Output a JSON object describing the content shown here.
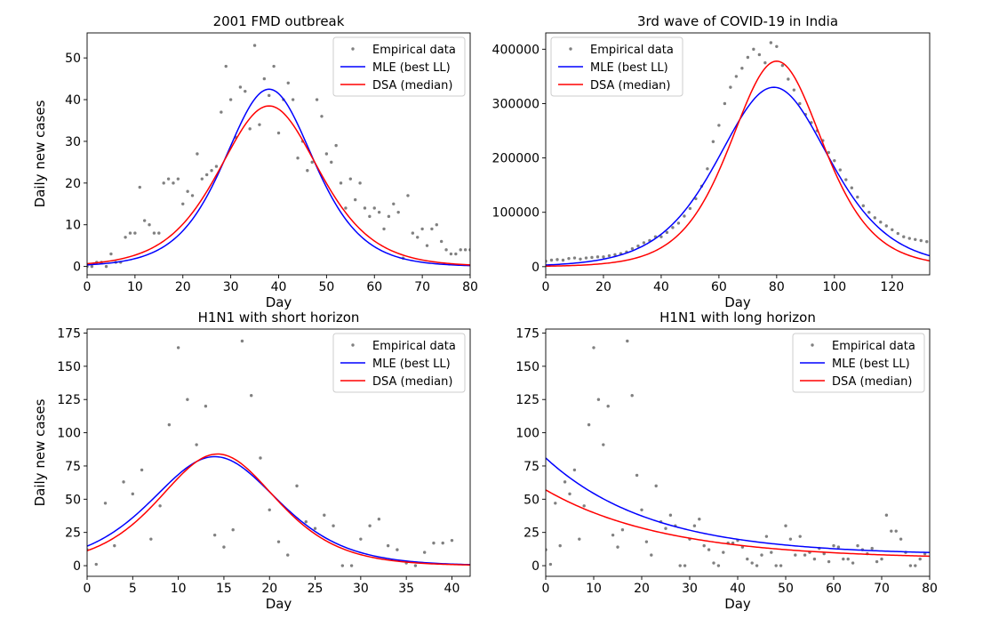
{
  "colors": {
    "empirical": "#808080",
    "mle": "#0000ff",
    "dsa": "#ff0000"
  },
  "chart_data": [
    {
      "type": "line",
      "title": "2001 FMD outbreak",
      "xlabel": "Day",
      "ylabel": "Daily new cases",
      "xlim": [
        0,
        80
      ],
      "ylim": [
        -2,
        56
      ],
      "xticks": [
        0,
        10,
        20,
        30,
        40,
        50,
        60,
        70,
        80
      ],
      "xtick_labels": [
        "0",
        "10",
        "20",
        "30",
        "40",
        "50",
        "60",
        "70",
        "80"
      ],
      "yticks": [
        0,
        10,
        20,
        30,
        40,
        50
      ],
      "ytick_labels": [
        "0",
        "10",
        "20",
        "30",
        "40",
        "50"
      ],
      "legend": {
        "position": "top-right",
        "entries": [
          "Empirical data",
          "MLE (best LL)",
          "DSA (median)"
        ]
      },
      "series": [
        {
          "name": "Empirical data",
          "kind": "scatter",
          "x": [
            0,
            1,
            2,
            3,
            4,
            5,
            6,
            7,
            8,
            9,
            10,
            11,
            12,
            13,
            14,
            15,
            16,
            17,
            18,
            19,
            20,
            21,
            22,
            23,
            24,
            25,
            26,
            27,
            28,
            29,
            30,
            31,
            32,
            33,
            34,
            35,
            36,
            37,
            38,
            39,
            40,
            41,
            42,
            43,
            44,
            45,
            46,
            47,
            48,
            49,
            50,
            51,
            52,
            53,
            54,
            55,
            56,
            57,
            58,
            59,
            60,
            61,
            62,
            63,
            64,
            65,
            66,
            67,
            68,
            69,
            70,
            71,
            72,
            73,
            74,
            75,
            76,
            77,
            78,
            79,
            80
          ],
          "y": [
            0,
            0,
            1,
            1,
            0,
            3,
            1,
            1,
            7,
            8,
            8,
            19,
            11,
            10,
            8,
            8,
            20,
            21,
            20,
            21,
            15,
            18,
            17,
            27,
            21,
            22,
            23,
            24,
            37,
            48,
            40,
            31,
            43,
            42,
            33,
            53,
            34,
            45,
            41,
            48,
            32,
            40,
            44,
            40,
            26,
            30,
            23,
            25,
            40,
            36,
            27,
            25,
            29,
            20,
            14,
            21,
            16,
            20,
            14,
            12,
            14,
            13,
            9,
            12,
            15,
            13,
            2,
            17,
            8,
            7,
            9,
            5,
            9,
            10,
            6,
            4,
            3,
            3,
            4,
            4,
            4
          ]
        },
        {
          "name": "MLE (best LL)",
          "kind": "line",
          "peak": 42.5,
          "center": 38,
          "width": 12.5,
          "base": 0
        },
        {
          "name": "DSA (median)",
          "kind": "line",
          "peak": 38.5,
          "center": 38,
          "width": 14,
          "base": 0
        }
      ]
    },
    {
      "type": "line",
      "title": "3rd wave of COVID-19 in India",
      "xlabel": "Day",
      "ylabel": "",
      "xlim": [
        0,
        133
      ],
      "ylim": [
        -15000,
        430000
      ],
      "xticks": [
        0,
        20,
        40,
        60,
        80,
        100,
        120
      ],
      "xtick_labels": [
        "0",
        "20",
        "40",
        "60",
        "80",
        "100",
        "120"
      ],
      "yticks": [
        0,
        100000,
        200000,
        300000,
        400000
      ],
      "ytick_labels": [
        "0",
        "100000",
        "200000",
        "300000",
        "400000"
      ],
      "legend": {
        "position": "top-left",
        "entries": [
          "Empirical data",
          "MLE (best LL)",
          "DSA (median)"
        ]
      },
      "series": [
        {
          "name": "Empirical data",
          "kind": "scatter",
          "x": [
            0,
            2,
            4,
            6,
            8,
            10,
            12,
            14,
            16,
            18,
            20,
            22,
            24,
            26,
            28,
            30,
            32,
            34,
            36,
            38,
            40,
            42,
            44,
            46,
            48,
            50,
            52,
            54,
            56,
            58,
            60,
            62,
            64,
            66,
            68,
            70,
            72,
            74,
            76,
            78,
            80,
            82,
            84,
            86,
            88,
            90,
            92,
            94,
            96,
            98,
            100,
            102,
            104,
            106,
            108,
            110,
            112,
            114,
            116,
            118,
            120,
            122,
            124,
            126,
            128,
            130,
            132
          ],
          "y": [
            10000,
            12000,
            13000,
            12000,
            15000,
            16000,
            14000,
            16000,
            17000,
            18000,
            18000,
            20000,
            22000,
            24000,
            27000,
            33000,
            38000,
            44000,
            48000,
            55000,
            55000,
            63000,
            72000,
            80000,
            93000,
            107000,
            125000,
            148000,
            180000,
            230000,
            260000,
            300000,
            330000,
            350000,
            365000,
            385000,
            400000,
            390000,
            375000,
            412000,
            405000,
            370000,
            345000,
            325000,
            300000,
            280000,
            265000,
            250000,
            232000,
            210000,
            195000,
            178000,
            160000,
            145000,
            128000,
            112000,
            100000,
            90000,
            82000,
            75000,
            68000,
            61000,
            55000,
            52000,
            50000,
            48000,
            46000
          ]
        },
        {
          "name": "MLE (best LL)",
          "kind": "line",
          "peak": 330000,
          "center": 79,
          "width": 26,
          "base": 0
        },
        {
          "name": "DSA (median)",
          "kind": "line",
          "peak": 378000,
          "center": 80,
          "width": 21.5,
          "base": 0
        }
      ]
    },
    {
      "type": "line",
      "title": "H1N1 with short horizon",
      "xlabel": "Day",
      "ylabel": "Daily new cases",
      "xlim": [
        0,
        42
      ],
      "ylim": [
        -8,
        178
      ],
      "xticks": [
        0,
        5,
        10,
        15,
        20,
        25,
        30,
        35,
        40
      ],
      "xtick_labels": [
        "0",
        "5",
        "10",
        "15",
        "20",
        "25",
        "30",
        "35",
        "40"
      ],
      "yticks": [
        0,
        25,
        50,
        75,
        100,
        125,
        150,
        175
      ],
      "ytick_labels": [
        "0",
        "25",
        "50",
        "75",
        "100",
        "125",
        "150",
        "175"
      ],
      "legend": {
        "position": "top-right",
        "entries": [
          "Empirical data",
          "MLE (best LL)",
          "DSA (median)"
        ]
      },
      "series": [
        {
          "name": "Empirical data",
          "kind": "scatter",
          "x": [
            0,
            1,
            2,
            3,
            4,
            5,
            6,
            7,
            8,
            9,
            10,
            11,
            12,
            13,
            14,
            15,
            16,
            17,
            18,
            19,
            20,
            21,
            22,
            23,
            24,
            25,
            26,
            27,
            28,
            29,
            30,
            31,
            32,
            33,
            34,
            35,
            36,
            37,
            38,
            39,
            40
          ],
          "y": [
            12,
            1,
            47,
            15,
            63,
            54,
            72,
            20,
            45,
            106,
            164,
            125,
            91,
            120,
            23,
            14,
            27,
            169,
            128,
            81,
            42,
            18,
            8,
            60,
            33,
            28,
            38,
            30,
            0,
            0,
            20,
            30,
            35,
            15,
            12,
            2,
            0,
            10,
            17,
            17,
            19
          ]
        },
        {
          "name": "MLE (best LL)",
          "kind": "line",
          "peak": 82,
          "center": 14,
          "width": 9.3,
          "base": 0
        },
        {
          "name": "DSA (median)",
          "kind": "line",
          "peak": 84,
          "center": 14.3,
          "width": 8.6,
          "base": 0
        }
      ]
    },
    {
      "type": "line",
      "title": "H1N1 with long horizon",
      "xlabel": "Day",
      "ylabel": "",
      "xlim": [
        0,
        80
      ],
      "ylim": [
        -8,
        178
      ],
      "xticks": [
        0,
        10,
        20,
        30,
        40,
        50,
        60,
        70,
        80
      ],
      "xtick_labels": [
        "0",
        "10",
        "20",
        "30",
        "40",
        "50",
        "60",
        "70",
        "80"
      ],
      "yticks": [
        0,
        25,
        50,
        75,
        100,
        125,
        150,
        175
      ],
      "ytick_labels": [
        "0",
        "25",
        "50",
        "75",
        "100",
        "125",
        "150",
        "175"
      ],
      "legend": {
        "position": "top-right",
        "entries": [
          "Empirical data",
          "MLE (best LL)",
          "DSA (median)"
        ]
      },
      "series": [
        {
          "name": "Empirical data",
          "kind": "scatter",
          "x": [
            0,
            1,
            2,
            3,
            4,
            5,
            6,
            7,
            8,
            9,
            10,
            11,
            12,
            13,
            14,
            15,
            16,
            17,
            18,
            19,
            20,
            21,
            22,
            23,
            24,
            25,
            26,
            27,
            28,
            29,
            30,
            31,
            32,
            33,
            34,
            35,
            36,
            37,
            38,
            39,
            40,
            41,
            42,
            43,
            44,
            45,
            46,
            47,
            48,
            49,
            50,
            51,
            52,
            53,
            54,
            55,
            56,
            57,
            58,
            59,
            60,
            61,
            62,
            63,
            64,
            65,
            66,
            67,
            68,
            69,
            70,
            71,
            72,
            73,
            74,
            75,
            76,
            77,
            78,
            79
          ],
          "y": [
            12,
            1,
            47,
            15,
            63,
            54,
            72,
            20,
            45,
            106,
            164,
            125,
            91,
            120,
            23,
            14,
            27,
            169,
            128,
            68,
            42,
            18,
            8,
            60,
            33,
            28,
            38,
            30,
            0,
            0,
            20,
            30,
            35,
            15,
            12,
            2,
            0,
            10,
            17,
            17,
            19,
            14,
            5,
            2,
            0,
            8,
            22,
            10,
            0,
            0,
            30,
            20,
            8,
            22,
            8,
            10,
            5,
            13,
            9,
            3,
            15,
            14,
            5,
            5,
            2,
            15,
            12,
            9,
            13,
            3,
            5,
            38,
            26,
            26,
            20,
            10,
            0,
            0,
            5,
            9
          ]
        },
        {
          "name": "MLE (best LL)",
          "kind": "line",
          "kind2": "decay",
          "a": 73,
          "tau": 22,
          "base": 8
        },
        {
          "name": "DSA (median)",
          "kind": "line",
          "kind2": "decay",
          "a": 52,
          "tau": 25,
          "base": 5
        }
      ]
    }
  ]
}
